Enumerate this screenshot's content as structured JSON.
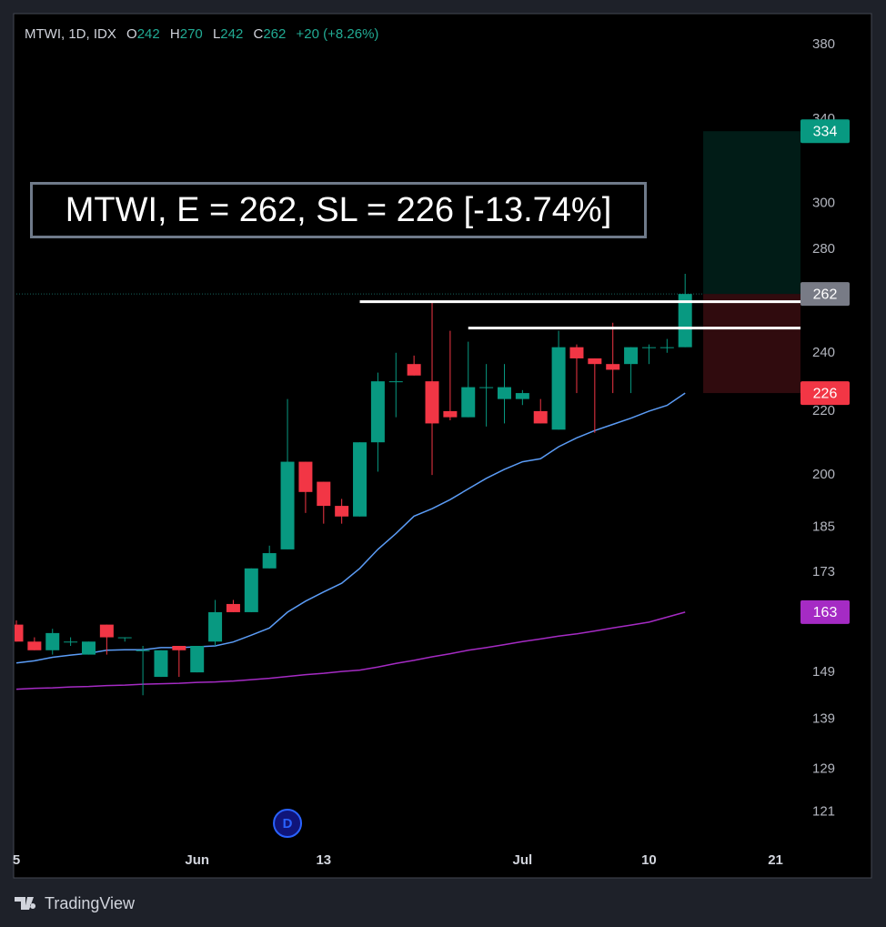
{
  "chart_data": {
    "type": "candlestick",
    "header": {
      "symbol": "MTWI, 1D, IDX",
      "ohlc_labels": [
        "O",
        "H",
        "L",
        "C"
      ],
      "change": "+20 (+8.26%)"
    },
    "annotation": "MTWI, E = 262, SL = 226 [-13.74%]",
    "marker": "D",
    "brand": "TradingView",
    "categories": [
      "5",
      null,
      null,
      null,
      null,
      null,
      null,
      null,
      null,
      null,
      "Jun",
      null,
      null,
      null,
      null,
      null,
      null,
      "13",
      null,
      null,
      null,
      null,
      null,
      null,
      null,
      null,
      null,
      null,
      "Jul",
      null,
      null,
      null,
      null,
      null,
      null,
      "10",
      null,
      null,
      null,
      null,
      null,
      null,
      "21"
    ],
    "open": [
      160,
      156,
      154,
      156,
      153,
      160,
      157,
      154,
      148,
      155,
      149,
      156,
      165,
      163,
      174,
      179,
      204,
      198,
      191,
      188,
      210,
      230,
      236,
      230,
      220,
      218,
      228,
      224,
      224,
      220,
      214,
      242,
      238,
      236,
      236,
      242,
      242,
      242,
      null,
      null,
      null,
      null,
      null
    ],
    "high": [
      161,
      157,
      159,
      157,
      156,
      160,
      157,
      155,
      154,
      155,
      155,
      166,
      166,
      174,
      180,
      224,
      204,
      198,
      193,
      210,
      233,
      240,
      239,
      259,
      248,
      244,
      236,
      236,
      227,
      224,
      248,
      243,
      238,
      251,
      242,
      243,
      245,
      270,
      null,
      null,
      null,
      null,
      null
    ],
    "low": [
      156,
      154,
      153,
      155,
      153,
      153,
      156,
      144,
      148,
      148,
      149,
      155,
      163,
      163,
      174,
      179,
      189,
      186,
      186,
      188,
      201,
      218,
      232,
      200,
      217,
      218,
      215,
      216,
      222,
      216,
      214,
      226,
      213,
      226,
      226,
      236,
      240,
      242,
      null,
      null,
      null,
      null,
      null
    ],
    "close": [
      156,
      154,
      158,
      156,
      156,
      157,
      157,
      154,
      154,
      154,
      155,
      163,
      163,
      174,
      178,
      204,
      195,
      191,
      188,
      210,
      230,
      230,
      232,
      216,
      218,
      228,
      228,
      228,
      226,
      216,
      242,
      238,
      236,
      234,
      242,
      242,
      242,
      262,
      null,
      null,
      null,
      null,
      null
    ],
    "up_color": "#089981",
    "down_color": "#f23645",
    "series": [
      {
        "color": "#5b9cf6",
        "values": [
          151.1,
          151.6,
          152.4,
          152.9,
          153.3,
          154,
          154.1,
          154.1,
          154.6,
          154.6,
          154.8,
          155,
          155.9,
          157.5,
          159.2,
          163,
          165.7,
          168,
          170.2,
          174,
          179,
          183.3,
          188.1,
          190.2,
          192.8,
          195.9,
          199,
          201.7,
          204,
          204.9,
          208.6,
          211.4,
          213.7,
          215.7,
          217.7,
          220,
          221.9,
          226,
          null,
          null,
          null,
          null,
          null
        ]
      },
      {
        "color": "#a52bc4",
        "values": [
          145.3,
          145.5,
          145.6,
          145.8,
          145.9,
          146.1,
          146.2,
          146.4,
          146.5,
          146.6,
          146.8,
          146.9,
          147.1,
          147.4,
          147.7,
          148.1,
          148.5,
          148.8,
          149.2,
          149.5,
          150.2,
          151,
          151.7,
          152.5,
          153.2,
          154,
          154.6,
          155.3,
          156,
          156.6,
          157.3,
          157.8,
          158.5,
          159.2,
          159.9,
          160.6,
          161.8,
          163,
          null,
          null,
          null,
          null,
          null
        ]
      }
    ],
    "levels": [
      {
        "value": 259,
        "start": 19
      },
      {
        "value": 249,
        "start": 25
      }
    ],
    "position": {
      "entry": 262,
      "target": 334,
      "stop": 226,
      "start": 38
    },
    "marker_index": 15,
    "log_scale": true,
    "ylim": [
      115,
      398
    ],
    "yticks": [
      121,
      129,
      139,
      149,
      173,
      185,
      200,
      220,
      240,
      280,
      300,
      340,
      380
    ]
  }
}
